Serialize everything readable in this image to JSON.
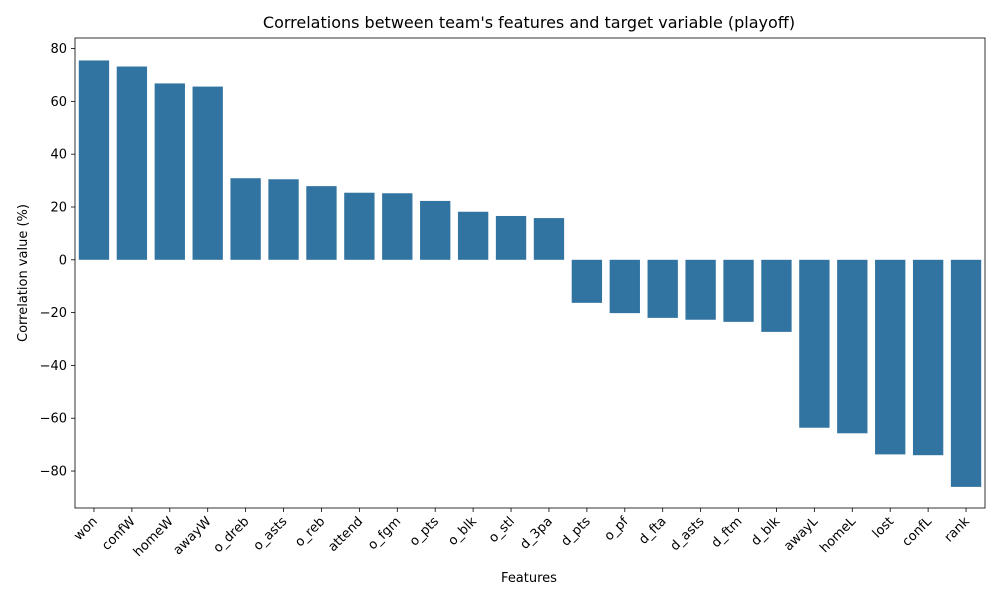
{
  "chart_data": {
    "type": "bar",
    "title": "Correlations between team's features and target variable (playoff)",
    "xlabel": "Features",
    "ylabel": "Correlation value (%)",
    "categories": [
      "won",
      "confW",
      "homeW",
      "awayW",
      "o_dreb",
      "o_asts",
      "o_reb",
      "attend",
      "o_fgm",
      "o_pts",
      "o_blk",
      "o_stl",
      "d_3pa",
      "d_pts",
      "o_pf",
      "d_fta",
      "d_asts",
      "d_ftm",
      "d_blk",
      "awayL",
      "homeL",
      "lost",
      "confL",
      "rank"
    ],
    "values": [
      75.5,
      73.2,
      66.8,
      65.6,
      30.9,
      30.5,
      27.9,
      25.4,
      25.2,
      22.3,
      18.2,
      16.6,
      15.8,
      -16.3,
      -20.2,
      -22.0,
      -22.7,
      -23.5,
      -27.3,
      -63.6,
      -65.7,
      -73.7,
      -74.0,
      -86.0
    ],
    "ylim": [
      -94,
      84
    ],
    "yticks": [
      -80,
      -60,
      -40,
      -20,
      0,
      20,
      40,
      60,
      80
    ],
    "bar_color": "#3274a1",
    "grid": false
  }
}
